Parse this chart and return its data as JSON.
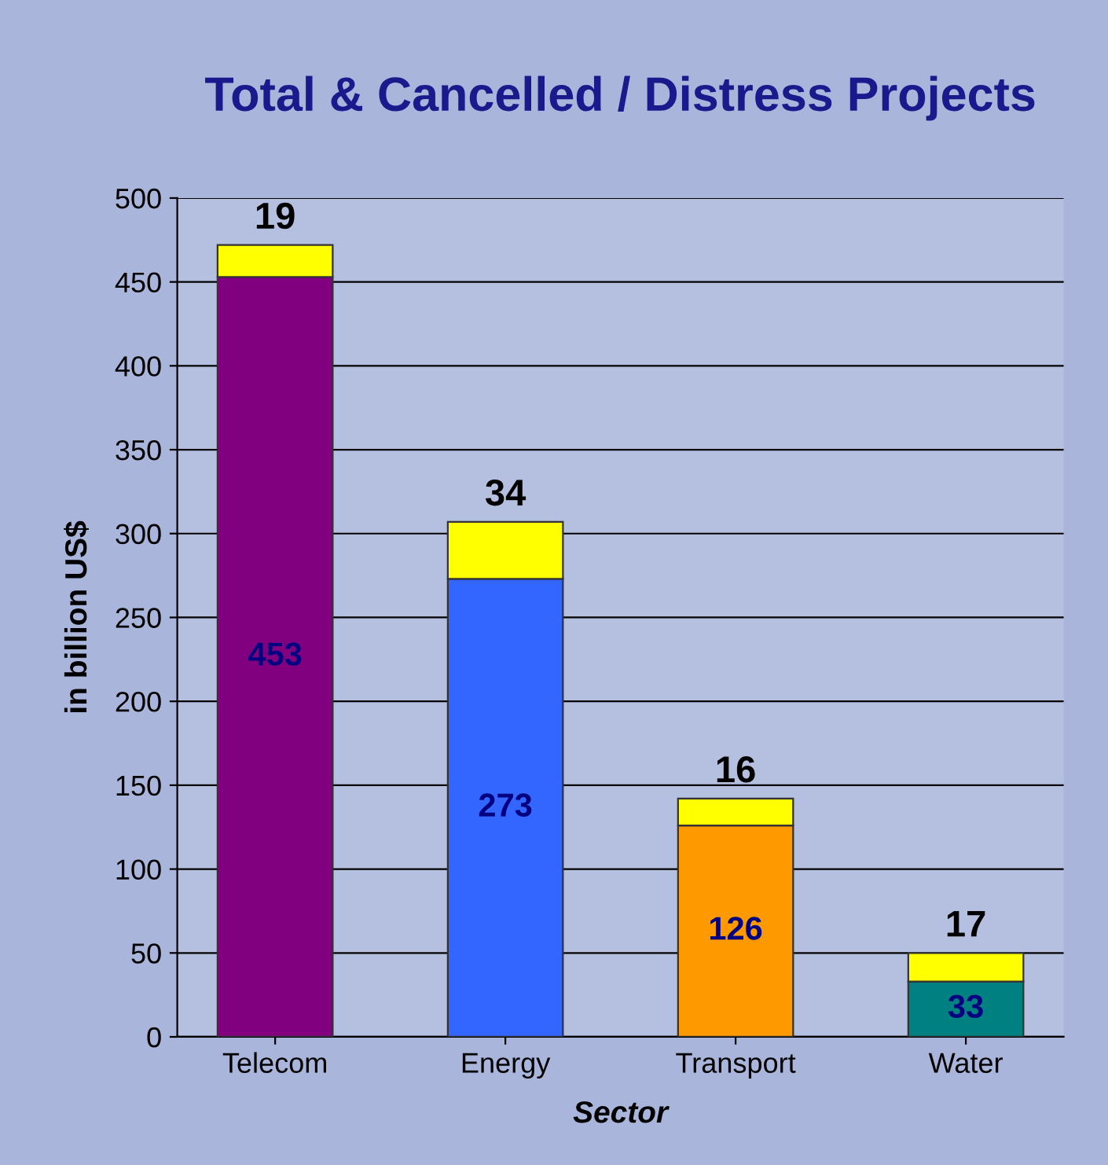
{
  "chart_data": {
    "type": "bar",
    "stacked": true,
    "title": "Total & Cancelled / Distress Projects",
    "xlabel": "Sector",
    "ylabel": "in billion US$",
    "categories": [
      "Telecom",
      "Energy",
      "Transport",
      "Water"
    ],
    "series": [
      {
        "colors": [
          "#800080",
          "#3366ff",
          "#ff9900",
          "#008080"
        ],
        "values": [
          453,
          273,
          126,
          33
        ]
      },
      {
        "color": "#ffff00",
        "values": [
          19,
          34,
          16,
          17
        ]
      }
    ],
    "ylim": [
      0,
      500
    ],
    "yticks": [
      0,
      50,
      100,
      150,
      200,
      250,
      300,
      350,
      400,
      450,
      500
    ],
    "grid": "y",
    "data_labels": true,
    "legend": false
  }
}
